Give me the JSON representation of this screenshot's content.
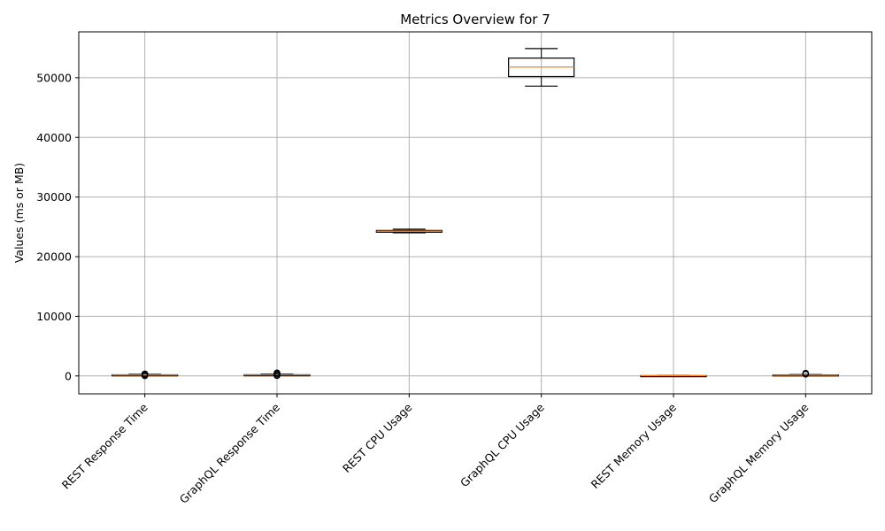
{
  "chart_data": {
    "type": "box",
    "title": "Metrics Overview for 7",
    "xlabel": "",
    "ylabel": "Values (ms or MB)",
    "ylim": [
      -3000,
      57700
    ],
    "yticks": [
      0,
      10000,
      20000,
      30000,
      40000,
      50000
    ],
    "grid": true,
    "categories": [
      "REST Response Time",
      "GraphQL Response Time",
      "REST CPU Usage",
      "GraphQL CPU Usage",
      "REST Memory Usage",
      "GraphQL Memory Usage"
    ],
    "boxes": [
      {
        "whisker_low": 80,
        "q1": 120,
        "median": 150,
        "q3": 190,
        "whisker_high": 260,
        "outliers": [
          40,
          220,
          300,
          340
        ]
      },
      {
        "whisker_low": 90,
        "q1": 130,
        "median": 160,
        "q3": 200,
        "whisker_high": 280,
        "outliers": [
          60,
          250,
          400,
          520
        ]
      },
      {
        "whisker_low": 24000,
        "q1": 24100,
        "median": 24300,
        "q3": 24400,
        "whisker_high": 24600,
        "outliers": []
      },
      {
        "whisker_low": 48600,
        "q1": 50200,
        "median": 51800,
        "q3": 53300,
        "whisker_high": 54900,
        "outliers": []
      },
      {
        "whisker_low": 20,
        "q1": 30,
        "median": 40,
        "q3": 50,
        "whisker_high": 60,
        "outliers": []
      },
      {
        "whisker_low": 60,
        "q1": 100,
        "median": 140,
        "q3": 180,
        "whisker_high": 240,
        "outliers": [
          300,
          380,
          460
        ]
      }
    ],
    "colors": {
      "box": "#000000",
      "median": "#ff7f0e",
      "grid": "#b0b0b0"
    }
  }
}
